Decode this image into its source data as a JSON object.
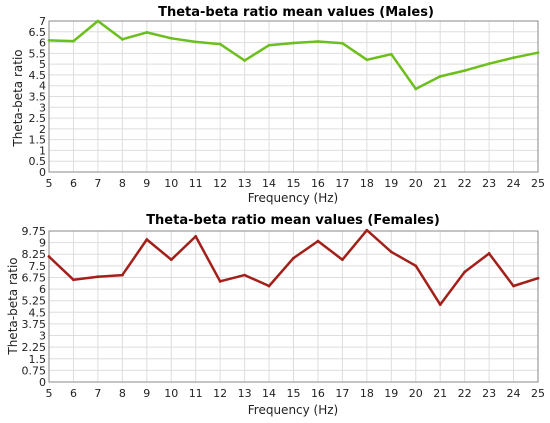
{
  "chart_data": [
    {
      "type": "line",
      "title": "Theta-beta ratio mean values (Males)",
      "xlabel": "Frequency (Hz)",
      "ylabel": "Theta-beta ratio",
      "x": [
        5,
        6,
        7,
        8,
        9,
        10,
        11,
        12,
        13,
        14,
        15,
        16,
        17,
        18,
        19,
        20,
        21,
        22,
        23,
        24,
        25
      ],
      "xlim": [
        5,
        25
      ],
      "ylim": [
        0,
        7
      ],
      "yticks": [
        "0",
        "0.5",
        "1",
        "1.5",
        "2",
        "2.5",
        "3",
        "3.5",
        "4",
        "4.5",
        "5",
        "5.5",
        "6",
        "6.5",
        "7"
      ],
      "grid": true,
      "series": [
        {
          "color": "#6cbf1c",
          "values": [
            6.1,
            6.07,
            7.0,
            6.15,
            6.47,
            6.2,
            6.03,
            5.93,
            5.17,
            5.88,
            5.98,
            6.05,
            5.97,
            5.2,
            5.46,
            3.85,
            4.43,
            4.7,
            5.02,
            5.3,
            5.53
          ]
        }
      ]
    },
    {
      "type": "line",
      "title": "Theta-beta ratio mean values (Females)",
      "xlabel": "Frequency (Hz)",
      "ylabel": "Theta-beta ratio",
      "x": [
        5,
        6,
        7,
        8,
        9,
        10,
        11,
        12,
        13,
        14,
        15,
        16,
        17,
        18,
        19,
        20,
        21,
        22,
        23,
        24,
        25
      ],
      "xlim": [
        5,
        25
      ],
      "ylim": [
        0,
        9.75
      ],
      "yticks": [
        "0",
        "0.75",
        "1.5",
        "2.25",
        "3",
        "3.75",
        "4.5",
        "5.25",
        "6",
        "6.75",
        "7.5",
        "8.25",
        "9",
        "9.75"
      ],
      "grid": true,
      "series": [
        {
          "color": "#a3201a",
          "values": [
            8.1,
            6.6,
            6.8,
            6.9,
            9.2,
            7.9,
            9.4,
            6.5,
            6.9,
            6.2,
            8.0,
            9.1,
            7.9,
            9.8,
            8.4,
            7.5,
            5.0,
            7.1,
            8.3,
            6.2,
            6.7
          ]
        }
      ]
    }
  ]
}
